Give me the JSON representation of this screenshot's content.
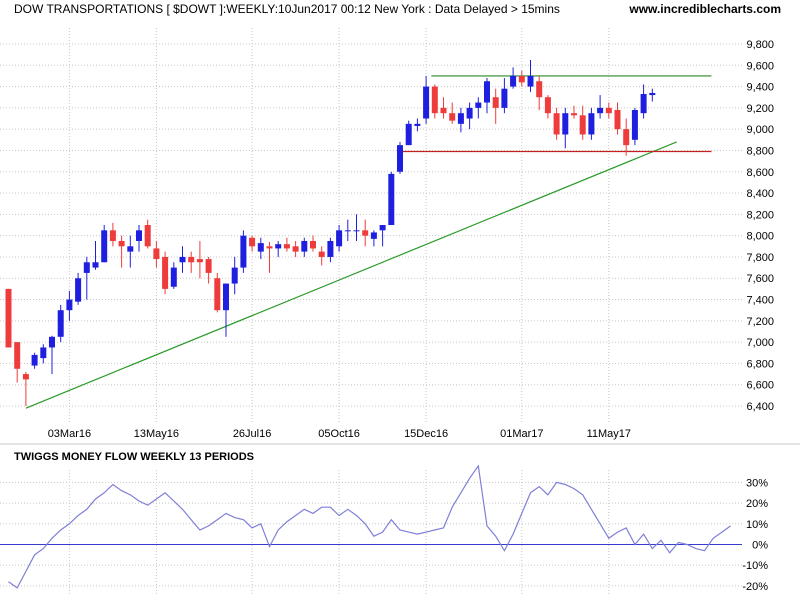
{
  "header": {
    "title": "DOW TRANSPORTATIONS [ $DOWT ]:WEEKLY:10Jun2017 00:12 New York : Data Delayed > 15mins",
    "site": "www.incrediblecharts.com"
  },
  "colors": {
    "up": "#1f1fe0",
    "down": "#ee3c3c",
    "trendline": "#2a9a2a",
    "resistance": "#2a8a2a",
    "support": "#c42020",
    "indicator": "#7f7fd8",
    "zeroline": "#3a3ad0",
    "grid": "#c8c8c8"
  },
  "chart_data": [
    {
      "type": "candlestick",
      "title": "",
      "xlabel": "",
      "ylabel": "",
      "ylim": [
        6250,
        9950
      ],
      "grid": true,
      "y_ticks": [
        6400,
        6600,
        6800,
        7000,
        7200,
        7400,
        7600,
        7800,
        8000,
        8200,
        8400,
        8600,
        8800,
        9000,
        9200,
        9400,
        9600,
        9800
      ],
      "y_tick_labels": [
        "6,400",
        "6,600",
        "6,800",
        "7,000",
        "7,200",
        "7,400",
        "7,600",
        "7,800",
        "8,000",
        "8,200",
        "8,400",
        "8,600",
        "8,800",
        "9,000",
        "9,200",
        "9,400",
        "9,600",
        "9,800"
      ],
      "x_tick_labels": [
        "03Mar16",
        "13May16",
        "26Jul16",
        "05Oct16",
        "15Dec16",
        "01Mar17",
        "11May17"
      ],
      "x_tick_index": [
        7,
        17,
        28,
        38,
        48,
        59,
        69
      ],
      "candles": [
        {
          "o": 7500,
          "h": 7500,
          "l": 6950,
          "c": 6950
        },
        {
          "o": 7000,
          "h": 7000,
          "l": 6620,
          "c": 6750
        },
        {
          "o": 6700,
          "h": 6720,
          "l": 6400,
          "c": 6650
        },
        {
          "o": 6780,
          "h": 6900,
          "l": 6750,
          "c": 6880
        },
        {
          "o": 6850,
          "h": 6980,
          "l": 6800,
          "c": 6950
        },
        {
          "o": 6950,
          "h": 7060,
          "l": 6700,
          "c": 7050
        },
        {
          "o": 7050,
          "h": 7350,
          "l": 7000,
          "c": 7300
        },
        {
          "o": 7300,
          "h": 7480,
          "l": 7200,
          "c": 7400
        },
        {
          "o": 7380,
          "h": 7650,
          "l": 7350,
          "c": 7600
        },
        {
          "o": 7650,
          "h": 7800,
          "l": 7400,
          "c": 7750
        },
        {
          "o": 7700,
          "h": 7950,
          "l": 7680,
          "c": 7750
        },
        {
          "o": 7750,
          "h": 8100,
          "l": 7750,
          "c": 8050
        },
        {
          "o": 8050,
          "h": 8120,
          "l": 7900,
          "c": 7950
        },
        {
          "o": 7950,
          "h": 8000,
          "l": 7700,
          "c": 7900
        },
        {
          "o": 7850,
          "h": 8000,
          "l": 7700,
          "c": 7900
        },
        {
          "o": 7950,
          "h": 8100,
          "l": 7850,
          "c": 8050
        },
        {
          "o": 8100,
          "h": 8150,
          "l": 7880,
          "c": 7900
        },
        {
          "o": 7880,
          "h": 7950,
          "l": 7700,
          "c": 7780
        },
        {
          "o": 7800,
          "h": 7850,
          "l": 7450,
          "c": 7500
        },
        {
          "o": 7520,
          "h": 7750,
          "l": 7500,
          "c": 7700
        },
        {
          "o": 7750,
          "h": 7900,
          "l": 7650,
          "c": 7800
        },
        {
          "o": 7800,
          "h": 7850,
          "l": 7650,
          "c": 7750
        },
        {
          "o": 7780,
          "h": 7950,
          "l": 7600,
          "c": 7750
        },
        {
          "o": 7780,
          "h": 7800,
          "l": 7550,
          "c": 7650
        },
        {
          "o": 7600,
          "h": 7650,
          "l": 7280,
          "c": 7300
        },
        {
          "o": 7300,
          "h": 7550,
          "l": 7050,
          "c": 7550
        },
        {
          "o": 7550,
          "h": 7800,
          "l": 7450,
          "c": 7700
        },
        {
          "o": 7700,
          "h": 8050,
          "l": 7650,
          "c": 8000
        },
        {
          "o": 7980,
          "h": 8000,
          "l": 7850,
          "c": 7900
        },
        {
          "o": 7850,
          "h": 7980,
          "l": 7780,
          "c": 7930
        },
        {
          "o": 7900,
          "h": 7940,
          "l": 7650,
          "c": 7880
        },
        {
          "o": 7880,
          "h": 7950,
          "l": 7800,
          "c": 7920
        },
        {
          "o": 7920,
          "h": 7980,
          "l": 7850,
          "c": 7880
        },
        {
          "o": 7900,
          "h": 7950,
          "l": 7800,
          "c": 7850
        },
        {
          "o": 7850,
          "h": 7980,
          "l": 7800,
          "c": 7950
        },
        {
          "o": 7950,
          "h": 8000,
          "l": 7850,
          "c": 7880
        },
        {
          "o": 7850,
          "h": 7900,
          "l": 7720,
          "c": 7800
        },
        {
          "o": 7800,
          "h": 7980,
          "l": 7750,
          "c": 7950
        },
        {
          "o": 7900,
          "h": 8100,
          "l": 7850,
          "c": 8050
        },
        {
          "o": 8050,
          "h": 8150,
          "l": 7950,
          "c": 8050
        },
        {
          "o": 8050,
          "h": 8200,
          "l": 7950,
          "c": 8050
        },
        {
          "o": 8050,
          "h": 8150,
          "l": 7900,
          "c": 8000
        },
        {
          "o": 7970,
          "h": 8050,
          "l": 7900,
          "c": 8030
        },
        {
          "o": 8050,
          "h": 8100,
          "l": 7900,
          "c": 8100
        },
        {
          "o": 8100,
          "h": 8600,
          "l": 8100,
          "c": 8580
        },
        {
          "o": 8600,
          "h": 8880,
          "l": 8580,
          "c": 8850
        },
        {
          "o": 8850,
          "h": 9080,
          "l": 8850,
          "c": 9050
        },
        {
          "o": 9030,
          "h": 9100,
          "l": 8980,
          "c": 9050
        },
        {
          "o": 9100,
          "h": 9500,
          "l": 9050,
          "c": 9400
        },
        {
          "o": 9400,
          "h": 9420,
          "l": 9100,
          "c": 9150
        },
        {
          "o": 9200,
          "h": 9300,
          "l": 9100,
          "c": 9150
        },
        {
          "o": 9150,
          "h": 9250,
          "l": 9050,
          "c": 9080
        },
        {
          "o": 9050,
          "h": 9200,
          "l": 8970,
          "c": 9150
        },
        {
          "o": 9100,
          "h": 9250,
          "l": 9000,
          "c": 9200
        },
        {
          "o": 9200,
          "h": 9300,
          "l": 9100,
          "c": 9250
        },
        {
          "o": 9250,
          "h": 9480,
          "l": 9150,
          "c": 9450
        },
        {
          "o": 9300,
          "h": 9380,
          "l": 9050,
          "c": 9200
        },
        {
          "o": 9200,
          "h": 9480,
          "l": 9150,
          "c": 9380
        },
        {
          "o": 9400,
          "h": 9580,
          "l": 9380,
          "c": 9500
        },
        {
          "o": 9500,
          "h": 9550,
          "l": 9400,
          "c": 9440
        },
        {
          "o": 9400,
          "h": 9650,
          "l": 9350,
          "c": 9500
        },
        {
          "o": 9450,
          "h": 9500,
          "l": 9180,
          "c": 9300
        },
        {
          "o": 9300,
          "h": 9320,
          "l": 9100,
          "c": 9150
        },
        {
          "o": 9150,
          "h": 9200,
          "l": 8900,
          "c": 8950
        },
        {
          "o": 8950,
          "h": 9200,
          "l": 8820,
          "c": 9150
        },
        {
          "o": 9150,
          "h": 9220,
          "l": 9100,
          "c": 9130
        },
        {
          "o": 9130,
          "h": 9220,
          "l": 8900,
          "c": 8950
        },
        {
          "o": 8950,
          "h": 9200,
          "l": 8900,
          "c": 9150
        },
        {
          "o": 9150,
          "h": 9320,
          "l": 9100,
          "c": 9200
        },
        {
          "o": 9200,
          "h": 9250,
          "l": 9100,
          "c": 9150
        },
        {
          "o": 9180,
          "h": 9250,
          "l": 8950,
          "c": 9000
        },
        {
          "o": 9000,
          "h": 9100,
          "l": 8750,
          "c": 8850
        },
        {
          "o": 8900,
          "h": 9200,
          "l": 8850,
          "c": 9180
        },
        {
          "o": 9150,
          "h": 9420,
          "l": 9100,
          "c": 9330
        },
        {
          "o": 9320,
          "h": 9380,
          "l": 9260,
          "c": 9340
        }
      ],
      "lines": [
        {
          "name": "",
          "kind": "trendline",
          "from": {
            "i": 2,
            "v": 6380
          },
          "to": {
            "i": 76.8,
            "v": 8880
          }
        },
        {
          "name": "",
          "kind": "resistance",
          "from": {
            "i": 48.6,
            "v": 9500
          },
          "to": {
            "i": 80.8,
            "v": 9500
          }
        },
        {
          "name": "",
          "kind": "support",
          "from": {
            "i": 45,
            "v": 8790
          },
          "to": {
            "i": 80.8,
            "v": 8790
          }
        }
      ]
    },
    {
      "type": "line",
      "title": "TWIGGS MONEY FLOW WEEKLY 13 PERIODS",
      "xlabel": "",
      "ylabel": "",
      "ylim": [
        -22,
        36
      ],
      "grid": true,
      "y_ticks": [
        30,
        20,
        10,
        0,
        -10,
        -20
      ],
      "y_tick_labels": [
        "30%",
        "20%",
        "10%",
        "0%",
        "-10%",
        "-20%"
      ],
      "zero_line": 0,
      "series": [
        {
          "name": "",
          "values": [
            -18,
            -21,
            -13,
            -5,
            -2,
            3,
            7,
            10,
            14,
            17,
            22,
            25,
            29,
            26,
            24,
            21,
            19,
            22,
            25,
            21,
            17,
            12,
            7,
            9,
            12,
            15,
            13,
            12,
            8,
            10,
            -1,
            7,
            11,
            14,
            17,
            15,
            18,
            18,
            14,
            17,
            14,
            10,
            4,
            6,
            12,
            7,
            6,
            5,
            6,
            7,
            8,
            18,
            25,
            32,
            38,
            9,
            4,
            -3,
            5,
            15,
            25,
            28,
            24,
            30,
            29,
            27,
            24,
            17,
            10,
            3,
            6,
            8,
            0,
            5,
            -2,
            2,
            -4,
            1,
            0,
            -2,
            -3,
            3,
            6,
            9
          ]
        }
      ]
    }
  ]
}
